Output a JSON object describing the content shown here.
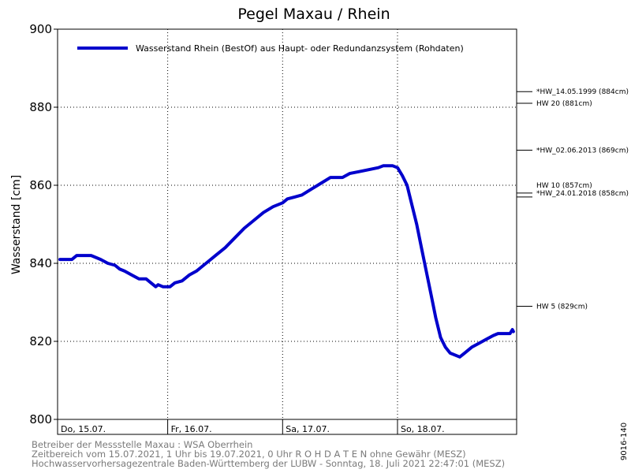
{
  "chart_data": {
    "type": "line",
    "title": "Pegel Maxau / Rhein",
    "ylabel": "Wasserstand [cm]",
    "xlabel": "",
    "ylim": [
      800,
      900
    ],
    "xlim": [
      0,
      95
    ],
    "yticks": [
      800,
      820,
      840,
      860,
      880,
      900
    ],
    "xticks": [
      {
        "t": 0,
        "label": "Do, 15.07."
      },
      {
        "t": 23,
        "label": "Fr, 16.07."
      },
      {
        "t": 47,
        "label": "Sa, 17.07."
      },
      {
        "t": 71,
        "label": "So, 18.07."
      }
    ],
    "grid": true,
    "legend": "top-left",
    "series": [
      {
        "name": "Wasserstand Rhein (BestOf)  aus Haupt- oder Redundanzsystem (Rohdaten)",
        "color": "#0000cc",
        "points": [
          [
            0.5,
            841
          ],
          [
            3.0,
            841
          ],
          [
            4.0,
            842
          ],
          [
            7.0,
            842
          ],
          [
            8.0,
            841.5
          ],
          [
            9.0,
            841
          ],
          [
            10.5,
            840
          ],
          [
            12.0,
            839.5
          ],
          [
            13.0,
            838.5
          ],
          [
            14.0,
            838
          ],
          [
            15.5,
            837
          ],
          [
            17.0,
            836
          ],
          [
            18.5,
            836
          ],
          [
            19.5,
            835
          ],
          [
            20.5,
            834
          ],
          [
            21.0,
            834.5
          ],
          [
            22.0,
            834
          ],
          [
            23.5,
            834
          ],
          [
            24.5,
            835
          ],
          [
            26.0,
            835.5
          ],
          [
            27.5,
            837
          ],
          [
            29.0,
            838
          ],
          [
            31.0,
            840
          ],
          [
            33.0,
            842
          ],
          [
            35.0,
            844
          ],
          [
            37.0,
            846.5
          ],
          [
            39.0,
            849
          ],
          [
            41.0,
            851
          ],
          [
            43.0,
            853
          ],
          [
            45.0,
            854.5
          ],
          [
            47.0,
            855.5
          ],
          [
            48.0,
            856.5
          ],
          [
            49.5,
            857
          ],
          [
            51.0,
            857.5
          ],
          [
            53.0,
            859
          ],
          [
            55.0,
            860.5
          ],
          [
            57.0,
            862
          ],
          [
            59.5,
            862
          ],
          [
            61.0,
            863
          ],
          [
            63.0,
            863.5
          ],
          [
            65.0,
            864
          ],
          [
            67.0,
            864.5
          ],
          [
            68.0,
            865
          ],
          [
            70.0,
            865
          ],
          [
            71.0,
            864.5
          ],
          [
            72.0,
            862.5
          ],
          [
            73.0,
            860
          ],
          [
            74.0,
            855
          ],
          [
            75.0,
            850
          ],
          [
            76.0,
            844
          ],
          [
            77.0,
            838
          ],
          [
            78.0,
            832
          ],
          [
            79.0,
            826
          ],
          [
            80.0,
            821
          ],
          [
            81.0,
            818.5
          ],
          [
            82.0,
            817
          ],
          [
            84.0,
            816
          ],
          [
            85.0,
            817
          ],
          [
            86.5,
            818.5
          ],
          [
            88.0,
            819.5
          ],
          [
            89.5,
            820.5
          ],
          [
            91.0,
            821.5
          ],
          [
            92.0,
            822
          ],
          [
            94.5,
            822
          ],
          [
            95.0,
            823
          ],
          [
            95.2,
            822.5
          ]
        ]
      }
    ],
    "marks": [
      {
        "value": 884,
        "label": "*HW_14.05.1999 (884cm)"
      },
      {
        "value": 881,
        "label": "HW 20 (881cm)"
      },
      {
        "value": 869,
        "label": "*HW_02.06.2013 (869cm)"
      },
      {
        "value": 858,
        "label": "*HW_24.01.2018 (858cm)"
      },
      {
        "value": 857,
        "label": "HW 10 (857cm)"
      },
      {
        "value": 829,
        "label": "HW 5 (829cm)"
      }
    ]
  },
  "footer": {
    "line1": "Betreiber der Messstelle Maxau : WSA Oberrhein",
    "line2": "Zeitbereich vom 15.07.2021, 1 Uhr bis 19.07.2021, 0 Uhr   R O H D A T E N ohne Gewähr (MESZ)",
    "line3": "Hochwasservorhersagezentrale Baden-Württemberg der LUBW - Sonntag, 18. Juli 2021 22:47:01 (MESZ)"
  },
  "side_code": "9016-140"
}
